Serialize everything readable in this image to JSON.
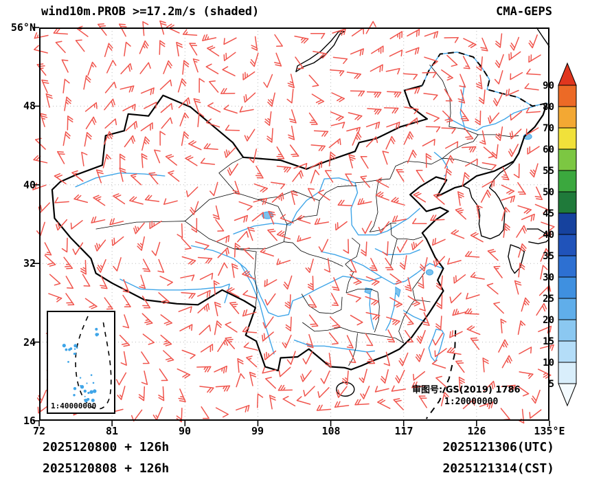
{
  "header": {
    "title": "wind10m.PROB >=17.2m/s (shaded)",
    "model": "CMA-GEPS"
  },
  "map_notes": {
    "license": "审图号: GS(2019) 1786",
    "map_scale": "1:20000000",
    "inset_scale": "1:40000000"
  },
  "footer": {
    "run_utc": "2025120800 + 126h",
    "run_cst": "2025120808 + 126h",
    "valid_utc": "2025121306(UTC)",
    "valid_cst": "2025121314(CST)"
  },
  "chart_data": {
    "type": "map",
    "subtype": "wind-barb probability forecast map",
    "title": "wind10m.PROB >=17.2m/s (shaded)",
    "model": "CMA-GEPS",
    "region": "China",
    "shading_threshold": ">=17.2 m/s",
    "x_axis": {
      "ticks": [
        "72",
        "81",
        "90",
        "99",
        "108",
        "117",
        "126",
        "135°E"
      ],
      "lon_values": [
        72,
        81,
        90,
        99,
        108,
        117,
        126,
        135
      ],
      "range": [
        72,
        135
      ]
    },
    "y_axis": {
      "ticks": [
        "56°N",
        "48",
        "40",
        "32",
        "24",
        "16"
      ],
      "lat_values": [
        56,
        48,
        40,
        32,
        24,
        16
      ],
      "range": [
        16,
        56
      ]
    },
    "colorbar": {
      "units": "%",
      "levels": [
        5,
        10,
        15,
        20,
        25,
        30,
        35,
        40,
        45,
        50,
        55,
        60,
        70,
        80,
        90
      ],
      "colors": [
        "#f4fbff",
        "#d9eefb",
        "#b4ddf8",
        "#8bc8f1",
        "#60aeea",
        "#3f90e0",
        "#2d70d2",
        "#2053ba",
        "#16429e",
        "#1f7a3a",
        "#3ba83e",
        "#7cc742",
        "#f1e13a",
        "#f3a833",
        "#ec6a26",
        "#e0361e"
      ],
      "note": "colors listed bottom-to-top including the <5 and >90 arrow end segments",
      "position": "right"
    },
    "barbs": {
      "color": "#f0544c",
      "coverage": "entire domain",
      "style": "wind barbs with 1-2 feathers"
    },
    "grid": "dotted graticule every 9 deg lon / 8 deg lat"
  }
}
